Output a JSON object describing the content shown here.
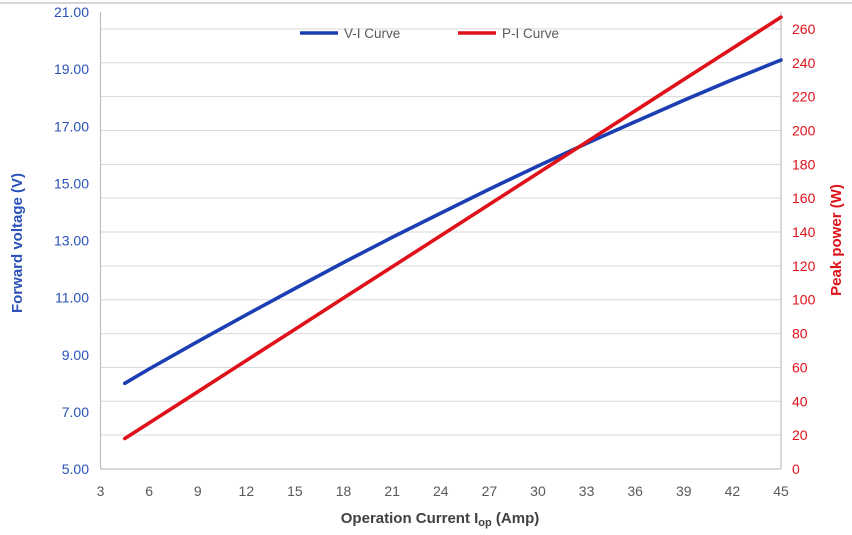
{
  "chart_data": {
    "type": "line",
    "title": "",
    "x": [
      4.5,
      6,
      9,
      12,
      15,
      18,
      21,
      24,
      27,
      30,
      33,
      36,
      39,
      42,
      45
    ],
    "series": [
      {
        "name": "V-I Curve",
        "axis": "left",
        "color": "#1B3FB3",
        "values": [
          8.0,
          8.5,
          9.46,
          10.4,
          11.32,
          12.23,
          13.11,
          13.96,
          14.8,
          15.61,
          16.4,
          17.16,
          17.91,
          18.63,
          19.32
        ]
      },
      {
        "name": "P-I Curve",
        "axis": "right",
        "color": "#DF1119",
        "values": [
          18,
          27.2,
          45.6,
          64.1,
          82.5,
          101,
          119.4,
          137.9,
          156.3,
          174.8,
          193.2,
          211.6,
          230.1,
          248.5,
          267
        ]
      }
    ],
    "x_axis": {
      "label_main": "Operation Current I",
      "label_sub": "op",
      "label_suffix": " (Amp)",
      "min": 3,
      "max": 45,
      "tick_step": 3,
      "tick_labels": [
        "3",
        "6",
        "9",
        "12",
        "15",
        "18",
        "21",
        "24",
        "27",
        "30",
        "33",
        "36",
        "39",
        "42",
        "45"
      ],
      "tick_color": "#595959",
      "title_color": "#404040"
    },
    "left_axis": {
      "label": "Forward voltage (V)",
      "min": 5,
      "max": 21,
      "tick_step": 2,
      "tick_labels": [
        "5.00",
        "7.00",
        "9.00",
        "11.00",
        "13.00",
        "15.00",
        "17.00",
        "19.00",
        "21.00"
      ],
      "color": "#2A52B8"
    },
    "right_axis": {
      "label": "Peak power (W)",
      "min": 0,
      "max": 270,
      "tick_step": 20,
      "tick_labels": [
        "0",
        "20",
        "40",
        "60",
        "80",
        "100",
        "120",
        "140",
        "160",
        "180",
        "200",
        "220",
        "240",
        "260"
      ],
      "color": "#DF1119"
    },
    "legend": {
      "position": "top-center",
      "items": [
        {
          "label": "V-I Curve",
          "color": "#1B3FB3"
        },
        {
          "label": "P-I Curve",
          "color": "#DF1119"
        }
      ]
    },
    "grid": {
      "horizontal": "right-axis-major-20W",
      "color": "#D9D9D9",
      "axis_line_color": "#BFBFBF",
      "top_border_color": "#C9C9C9"
    },
    "xlim": [
      3,
      45
    ],
    "ylim_left": [
      5,
      21
    ],
    "ylim_right": [
      0,
      270
    ]
  }
}
